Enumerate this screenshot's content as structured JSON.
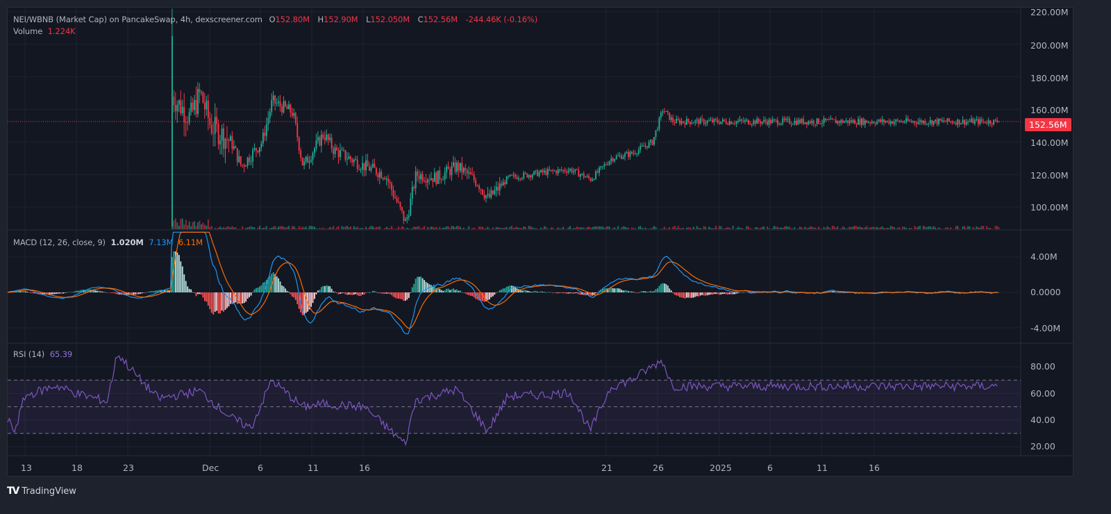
{
  "header": {
    "symbol_title": "NEI/WBNB (Market Cap) on PancakeSwap, 4h, dexscreener.com",
    "open_label": "O",
    "open_value": "152.80M",
    "high_label": "H",
    "high_value": "152.90M",
    "low_label": "L",
    "low_value": "152.050M",
    "close_label": "C",
    "close_value": "152.56M",
    "change": "-244.46K (-0.16%)",
    "volume_label": "Volume",
    "volume_value": "1.224K"
  },
  "macd_legend": {
    "label": "MACD (12, 26, close, 9)",
    "histogram": "1.020M",
    "macd": "7.13M",
    "signal": "6.11M"
  },
  "rsi_legend": {
    "label": "RSI (14)",
    "value": "65.39"
  },
  "price_axis": [
    "220.00M",
    "200.00M",
    "180.00M",
    "160.00M",
    "140.00M",
    "120.00M",
    "100.00M"
  ],
  "current_price_tag": "152.56M",
  "macd_axis": [
    "4.00M",
    "0.0000",
    "-4.00M"
  ],
  "rsi_axis": [
    "80.00",
    "60.00",
    "40.00",
    "20.00"
  ],
  "time_axis": [
    "13",
    "18",
    "23",
    "Dec",
    "6",
    "11",
    "16",
    "21",
    "26",
    "2025",
    "6",
    "11",
    "16"
  ],
  "branding": {
    "logo_text": "TradingView"
  },
  "colors": {
    "up": "#22ab94",
    "down": "#f23645",
    "background": "#131722",
    "grid": "#1f2330",
    "macd_line": "#2196f3",
    "signal_line": "#ff6d00",
    "rsi_line": "#7e57c2",
    "hist_up_strong": "#26a69a",
    "hist_up_weak": "#b2dfdb",
    "hist_down_strong": "#ff5252",
    "hist_down_weak": "#ffcdd2"
  },
  "chart_data": [
    {
      "type": "candlestick",
      "title": "NEI/WBNB (Market Cap) on PancakeSwap, 4h, dexscreener.com",
      "ylabel": "Market Cap",
      "ylim": [
        88,
        222
      ],
      "yticks": [
        100,
        120,
        140,
        160,
        180,
        200,
        220
      ],
      "current_value": 152.56,
      "xticks": [
        "13",
        "18",
        "23",
        "Dec",
        "6",
        "11",
        "16",
        "21",
        "26",
        "2025",
        "6",
        "11",
        "16"
      ],
      "close_path_keypoints": [
        {
          "x": "Nov 22",
          "close": 88
        },
        {
          "x": "Nov 22",
          "close": 205
        },
        {
          "x": "Nov 23",
          "close": 195
        },
        {
          "x": "Nov 24",
          "close": 160
        },
        {
          "x": "Nov 25",
          "close": 190
        },
        {
          "x": "Nov 26",
          "close": 150
        },
        {
          "x": "Nov 27",
          "close": 170
        },
        {
          "x": "Nov 29",
          "close": 155
        },
        {
          "x": "Nov 30",
          "close": 170
        },
        {
          "x": "Dec 1",
          "close": 150
        },
        {
          "x": "Dec 3",
          "close": 140
        },
        {
          "x": "Dec 4",
          "close": 125
        },
        {
          "x": "Dec 6",
          "close": 140
        },
        {
          "x": "Dec 7",
          "close": 165
        },
        {
          "x": "Dec 9",
          "close": 158
        },
        {
          "x": "Dec 10",
          "close": 125
        },
        {
          "x": "Dec 12",
          "close": 145
        },
        {
          "x": "Dec 13",
          "close": 135
        },
        {
          "x": "Dec 16",
          "close": 125
        },
        {
          "x": "Dec 18",
          "close": 120
        },
        {
          "x": "Dec 20",
          "close": 90
        },
        {
          "x": "Dec 21",
          "close": 120
        },
        {
          "x": "Dec 23",
          "close": 118
        },
        {
          "x": "Dec 25",
          "close": 125
        },
        {
          "x": "Dec 27",
          "close": 115
        },
        {
          "x": "Dec 28",
          "close": 105
        },
        {
          "x": "Dec 30",
          "close": 118
        },
        {
          "x": "Jan 2",
          "close": 121
        },
        {
          "x": "Jan 5",
          "close": 123
        },
        {
          "x": "Jan 7",
          "close": 117
        },
        {
          "x": "Jan 9",
          "close": 130
        },
        {
          "x": "Jan 11",
          "close": 133
        },
        {
          "x": "Jan 13",
          "close": 140
        },
        {
          "x": "Jan 14",
          "close": 160
        },
        {
          "x": "Jan 15",
          "close": 152.56
        }
      ]
    },
    {
      "type": "line+bar",
      "title": "MACD (12, 26, close, 9)",
      "ylim": [
        -5.5,
        6.8
      ],
      "yticks": [
        -4,
        0,
        4
      ],
      "latest": {
        "histogram": 1.02,
        "macd": 7.13,
        "signal": 6.11
      },
      "units": "M"
    },
    {
      "type": "line",
      "title": "RSI (14)",
      "ylim": [
        15,
        95
      ],
      "yticks": [
        20,
        40,
        60,
        80
      ],
      "bands": [
        30,
        50,
        70
      ],
      "latest": 65.39,
      "keypoints": [
        {
          "x": "Nov 11",
          "rsi": 40
        },
        {
          "x": "Nov 12",
          "rsi": 32
        },
        {
          "x": "Nov 13",
          "rsi": 58
        },
        {
          "x": "Nov 16",
          "rsi": 66
        },
        {
          "x": "Nov 18",
          "rsi": 60
        },
        {
          "x": "Nov 21",
          "rsi": 54
        },
        {
          "x": "Nov 22",
          "rsi": 90
        },
        {
          "x": "Nov 24",
          "rsi": 72
        },
        {
          "x": "Nov 26",
          "rsi": 56
        },
        {
          "x": "Nov 30",
          "rsi": 62
        },
        {
          "x": "Dec 3",
          "rsi": 42
        },
        {
          "x": "Dec 5",
          "rsi": 34
        },
        {
          "x": "Dec 7",
          "rsi": 70
        },
        {
          "x": "Dec 10",
          "rsi": 50
        },
        {
          "x": "Dec 12",
          "rsi": 52
        },
        {
          "x": "Dec 16",
          "rsi": 50
        },
        {
          "x": "Dec 20",
          "rsi": 22
        },
        {
          "x": "Dec 21",
          "rsi": 55
        },
        {
          "x": "Dec 25",
          "rsi": 63
        },
        {
          "x": "Dec 28",
          "rsi": 32
        },
        {
          "x": "Dec 30",
          "rsi": 58
        },
        {
          "x": "Jan 3",
          "rsi": 59
        },
        {
          "x": "Jan 5",
          "rsi": 61
        },
        {
          "x": "Jan 7",
          "rsi": 32
        },
        {
          "x": "Jan 9",
          "rsi": 65
        },
        {
          "x": "Jan 11",
          "rsi": 70
        },
        {
          "x": "Jan 14",
          "rsi": 85
        },
        {
          "x": "Jan 15",
          "rsi": 65.39
        }
      ]
    }
  ]
}
